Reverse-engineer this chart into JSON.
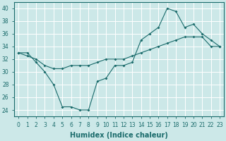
{
  "title": "",
  "xlabel": "Humidex (Indice chaleur)",
  "ylabel": "",
  "background_color": "#cce8e8",
  "grid_color": "#ffffff",
  "line_color": "#1a6b6b",
  "x_ticks": [
    0,
    1,
    2,
    3,
    4,
    5,
    6,
    7,
    8,
    9,
    10,
    11,
    12,
    13,
    14,
    15,
    16,
    17,
    18,
    19,
    20,
    21,
    22,
    23
  ],
  "y_ticks": [
    24,
    26,
    28,
    30,
    32,
    34,
    36,
    38,
    40
  ],
  "ylim": [
    23.0,
    41.0
  ],
  "xlim": [
    -0.5,
    23.5
  ],
  "series1_x": [
    0,
    1,
    2,
    3,
    4,
    5,
    6,
    7,
    8,
    9,
    10,
    11,
    12,
    13,
    14,
    15,
    16,
    17,
    18,
    19,
    20,
    21,
    22,
    23
  ],
  "series1_y": [
    33,
    33,
    31.5,
    30,
    28,
    24.5,
    24.5,
    24,
    24,
    28.5,
    29,
    31,
    31,
    31.5,
    35,
    36,
    37,
    40,
    39.5,
    37,
    37.5,
    36,
    35,
    34
  ],
  "series2_x": [
    0,
    1,
    2,
    3,
    4,
    5,
    6,
    7,
    8,
    9,
    10,
    11,
    12,
    13,
    14,
    15,
    16,
    17,
    18,
    19,
    20,
    21,
    22,
    23
  ],
  "series2_y": [
    33,
    32.5,
    32,
    31,
    30.5,
    30.5,
    31,
    31,
    31,
    31.5,
    32,
    32,
    32,
    32.5,
    33,
    33.5,
    34,
    34.5,
    35,
    35.5,
    35.5,
    35.5,
    34,
    34
  ],
  "tick_fontsize": 5.5,
  "xlabel_fontsize": 7.0,
  "xlabel_fontweight": "bold",
  "marker": "D",
  "markersize": 2.0,
  "linewidth": 0.8
}
